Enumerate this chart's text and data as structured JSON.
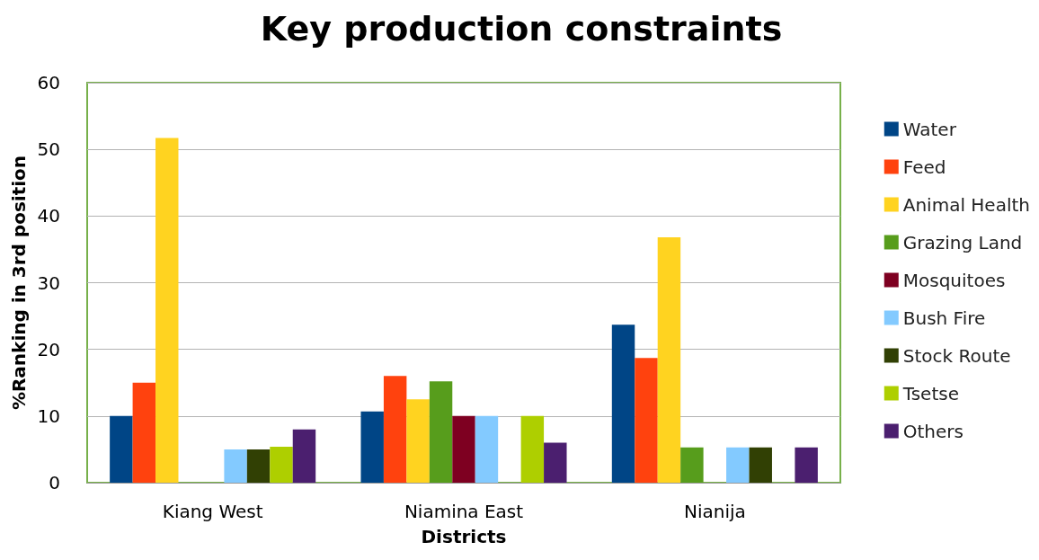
{
  "chart_data": {
    "type": "bar",
    "title": "Key production constraints",
    "xlabel": "Districts",
    "ylabel": "%Ranking in 3rd position",
    "categories": [
      "Kiang West",
      "Niamina East",
      "Nianija"
    ],
    "series": [
      {
        "name": "Water",
        "color": "#004586",
        "values": [
          10,
          10.7,
          23.7
        ]
      },
      {
        "name": "Feed",
        "color": "#ff420e",
        "values": [
          15,
          16,
          18.7
        ]
      },
      {
        "name": "Animal Health",
        "color": "#ffd320",
        "values": [
          51.7,
          12.5,
          36.8
        ]
      },
      {
        "name": "Grazing Land",
        "color": "#579d1c",
        "values": [
          0,
          15.2,
          5.3
        ]
      },
      {
        "name": "Mosquitoes",
        "color": "#7e0021",
        "values": [
          0,
          10,
          0
        ]
      },
      {
        "name": "Bush Fire",
        "color": "#83caff",
        "values": [
          5,
          10,
          5.3
        ]
      },
      {
        "name": "Stock Route",
        "color": "#314004",
        "values": [
          5,
          0,
          5.3
        ]
      },
      {
        "name": "Tsetse",
        "color": "#aecf00",
        "values": [
          5.4,
          10,
          0
        ]
      },
      {
        "name": "Others",
        "color": "#4b1f6f",
        "values": [
          8,
          6,
          5.3
        ]
      }
    ],
    "ylim": [
      0,
      60
    ],
    "yticks": [
      0,
      10,
      20,
      30,
      40,
      50,
      60
    ],
    "grid": "y",
    "legend": "right"
  }
}
